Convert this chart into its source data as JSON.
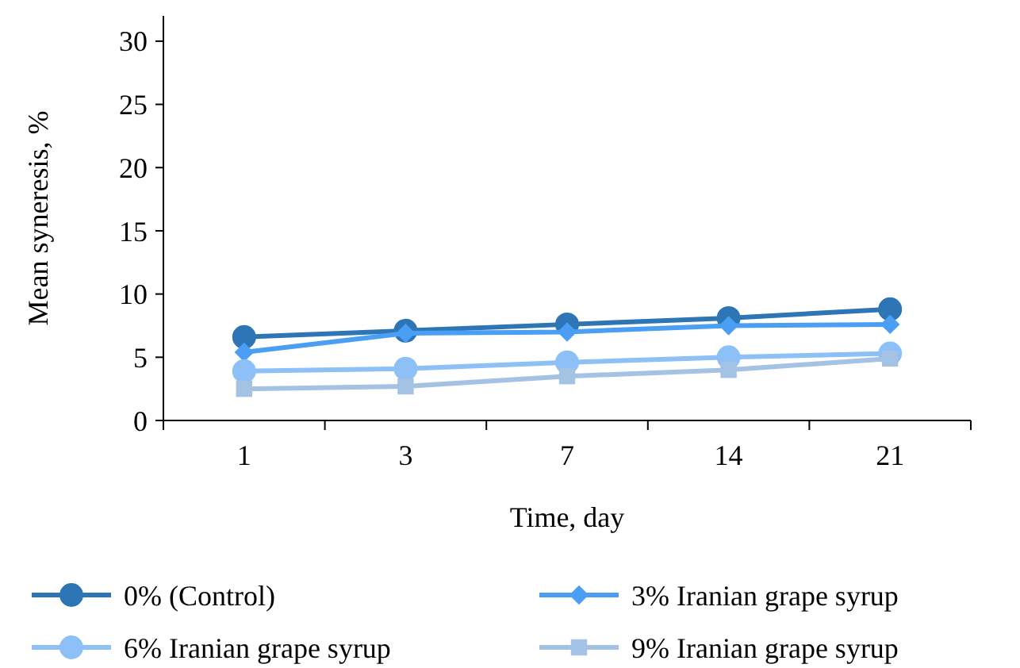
{
  "chart_data": {
    "type": "line",
    "xlabel": "Time, day",
    "ylabel": "Mean syneresis, %",
    "categories": [
      "1",
      "3",
      "7",
      "14",
      "21"
    ],
    "ylim": [
      0,
      32
    ],
    "yticks": [
      0,
      5,
      10,
      15,
      20,
      25,
      30
    ],
    "grid": false,
    "legend": "bottom",
    "line_style": "solid",
    "series": [
      {
        "name": "0% (Control)",
        "color": "#2e75b6",
        "marker": "circle",
        "values": [
          6.6,
          7.1,
          7.6,
          8.1,
          8.8
        ]
      },
      {
        "name": "3% Iranian grape syrup",
        "color": "#4a9ff5",
        "marker": "diamond",
        "values": [
          5.4,
          6.9,
          7.0,
          7.5,
          7.6
        ]
      },
      {
        "name": "6% Iranian grape syrup",
        "color": "#8dc0f7",
        "marker": "circle",
        "values": [
          3.9,
          4.1,
          4.6,
          5.0,
          5.3
        ]
      },
      {
        "name": "9% Iranian grape syrup",
        "color": "#a4c2e3",
        "marker": "square",
        "values": [
          2.5,
          2.7,
          3.5,
          4.0,
          4.9
        ]
      }
    ]
  }
}
